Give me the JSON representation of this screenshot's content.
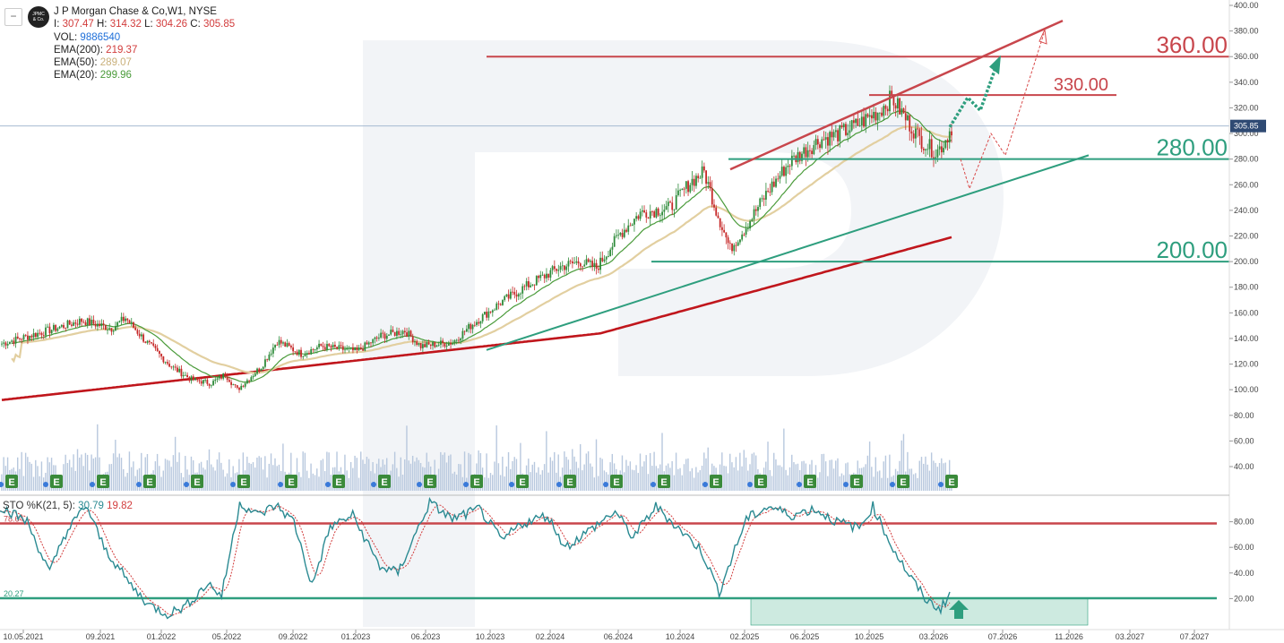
{
  "header": {
    "title": "J P Morgan Chase & Co,",
    "timeframe": "W1, NYSE",
    "logo_text": "JPMC & Co.",
    "ohlc": {
      "o_label": "O:",
      "o": "307.47",
      "h_label": "H:",
      "h": "314.32",
      "l_label": "L:",
      "l": "304.26",
      "c_label": "C:",
      "c": "305.85"
    },
    "vol_label": "VOL:",
    "vol": "9886540",
    "ema200_label": "EMA(200):",
    "ema200": "219.37",
    "ema50_label": "EMA(50):",
    "ema50": "289.07",
    "ema20_label": "EMA(20):",
    "ema20": "299.96",
    "collapse_icon": "minus-icon"
  },
  "stochastic": {
    "label": "STO %K(21, 5):",
    "k": "30.79",
    "d": "19.82",
    "upper_level": "78.64",
    "lower_level": "20.27"
  },
  "price_axis": {
    "ticks": [
      "400.00",
      "380.00",
      "360.00",
      "340.00",
      "320.00",
      "300.00",
      "280.00",
      "260.00",
      "240.00",
      "220.00",
      "200.00",
      "180.00",
      "160.00",
      "140.00",
      "120.00",
      "100.00",
      "80.00",
      "60.00",
      "40.00"
    ],
    "current_price": "305.85"
  },
  "sto_axis": {
    "ticks": [
      "80.00",
      "60.00",
      "40.00",
      "20.00"
    ]
  },
  "time_axis": {
    "ticks": [
      "10.05.2021",
      "09.2021",
      "01.2022",
      "05.2022",
      "09.2022",
      "01.2023",
      "06.2023",
      "10.2023",
      "02.2024",
      "06.2024",
      "10.2024",
      "02.2025",
      "06.2025",
      "10.2025",
      "03.2026",
      "07.2026",
      "11.2026",
      "03.2027",
      "07.2027"
    ]
  },
  "levels": [
    {
      "label": "360.00",
      "value": 360,
      "color": "#c8464c"
    },
    {
      "label": "330.00",
      "value": 330,
      "color": "#c8464c"
    },
    {
      "label": "280.00",
      "value": 280,
      "color": "#2e9e7e"
    },
    {
      "label": "200.00",
      "value": 200,
      "color": "#2e9e7e"
    }
  ],
  "earnings_marker": "E",
  "earnings_count": 21,
  "colors": {
    "up": "#2e8b3a",
    "down": "#c62828",
    "ema200": "#c0161c",
    "ema50": "#e2cfa0",
    "ema20": "#4a9b3a",
    "resist": "#c8464c",
    "support": "#2e9e7e",
    "volume": "#b8c8de",
    "sto_k": "#2a8a92",
    "sto_d": "#d23c3c",
    "forecast": "#2e9e7e"
  },
  "chart_data": {
    "type": "candlestick",
    "symbol": "J P Morgan Chase & Co",
    "timeframe": "W1",
    "ylim": [
      25,
      405
    ],
    "x": [
      "2021-05",
      "2021-09",
      "2022-01",
      "2022-05",
      "2022-09",
      "2023-01",
      "2023-06",
      "2023-10",
      "2024-02",
      "2024-06",
      "2024-10",
      "2025-02",
      "2025-06",
      "2025-10",
      "2026-03"
    ],
    "close_approx": [
      148,
      155,
      160,
      118,
      112,
      140,
      150,
      140,
      180,
      200,
      230,
      260,
      285,
      315,
      305.85
    ],
    "series": [
      {
        "name": "EMA(200)",
        "values": [
          91,
          103,
          108,
          110,
          112,
          114,
          117,
          121,
          135,
          145,
          165,
          190,
          198,
          210,
          219.37
        ]
      },
      {
        "name": "EMA(50)",
        "values": [
          124,
          142,
          148,
          138,
          120,
          118,
          130,
          132,
          152,
          170,
          192,
          225,
          262,
          285,
          289.07
        ]
      },
      {
        "name": "EMA(20)",
        "values": [
          138,
          150,
          150,
          120,
          110,
          128,
          140,
          138,
          168,
          190,
          215,
          245,
          280,
          300,
          299.96
        ]
      }
    ],
    "annotations": [
      "360.00",
      "330.00",
      "280.00",
      "200.00"
    ],
    "stochastic": {
      "k_last": 30.79,
      "d_last": 19.82,
      "levels": [
        78.64,
        20.27
      ],
      "ylim": [
        0,
        100
      ]
    }
  }
}
